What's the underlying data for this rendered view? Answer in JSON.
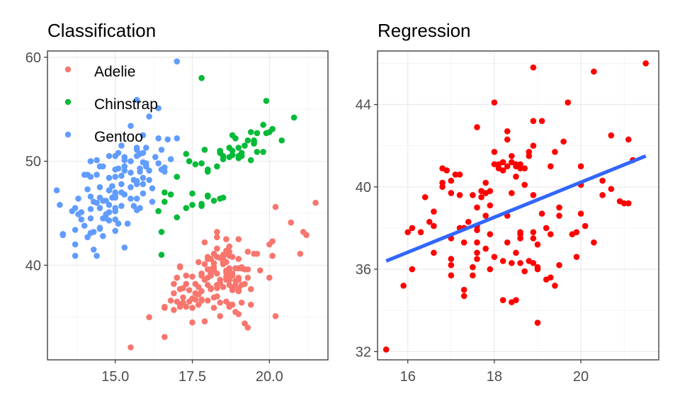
{
  "chart_data": [
    {
      "type": "scatter",
      "title": "Classification",
      "xlabel": "",
      "ylabel": "",
      "xlim": [
        12.8,
        21.9
      ],
      "ylim": [
        30.9,
        60.6
      ],
      "x_ticks": [
        "15.0",
        "17.5",
        "20.0"
      ],
      "y_ticks": [
        "40",
        "50",
        "60"
      ],
      "grid": true,
      "legend_position": "top-left",
      "series": [
        {
          "name": "Adelie",
          "color": "#F8766D",
          "x": [
            15.5,
            21.5,
            20.2,
            21.2,
            21.1,
            20.7,
            18.4,
            16.6,
            18.3,
            19.0,
            18.9,
            20.1,
            18.6,
            18.1,
            18.0,
            17.4,
            19.4,
            17.7,
            18.3,
            17.9,
            16.9,
            18.9,
            18.4,
            19.3,
            18.5,
            17.8,
            21.0,
            19.5,
            18.2,
            19.2,
            19.4,
            18.3,
            19.7,
            18.8,
            20.2,
            17.6,
            19.3,
            18.2,
            19.0,
            19.0,
            19.1,
            19.2,
            19.0,
            18.2,
            20.0,
            17.1,
            18.6,
            17.6,
            17.3,
            17.9,
            19.1,
            18.3,
            17.2,
            18.2,
            16.1,
            18.6,
            18.6,
            17.1,
            18.3,
            18.8,
            18.5,
            19.0,
            18.4,
            17.9,
            17.0,
            18.0,
            18.7,
            18.7,
            17.8,
            17.3,
            17.1,
            18.7,
            20.0,
            17.2,
            17.8,
            18.2,
            18.7,
            16.6,
            17.4,
            20.1,
            18.3,
            17.5,
            18.1,
            18.4,
            18.3,
            18.6,
            18.5,
            17.1,
            19.3,
            17.7,
            19.6,
            17.8,
            18.3,
            17.7,
            17.3,
            18.7,
            18.5,
            17.5,
            17.5,
            17.0,
            18.8,
            18.5,
            18.7,
            17.1,
            19.1,
            18.1,
            18.6,
            19.0,
            19.0,
            18.5,
            18.0,
            19.2,
            17.6,
            18.9,
            18.5,
            18.1,
            16.9,
            17.9,
            16.6,
            18.8,
            19.0,
            18.0,
            18.1,
            18.4,
            17.2,
            19.0,
            18.8,
            18.3,
            19.1,
            18.6,
            17.0,
            16.9,
            17.5,
            18.0,
            18.7,
            18.8,
            17.1,
            18.0,
            17.8,
            18.6,
            18.1,
            19.3,
            18.9,
            17.7,
            18.7,
            18.7,
            18.2,
            18.7,
            18.6,
            16.8
          ],
          "y": [
            32.1,
            46.0,
            45.6,
            42.9,
            43.2,
            44.1,
            36.4,
            35.9,
            38.1,
            37.7,
            38.5,
            42.3,
            41.1,
            40.6,
            40.8,
            36.5,
            36.2,
            36.2,
            38.1,
            34.6,
            35.7,
            35.5,
            35.1,
            34.0,
            37.9,
            36.7,
            41.1,
            41.1,
            39.8,
            38.2,
            37.7,
            40.8,
            39.5,
            39.0,
            35.1,
            37.3,
            39.6,
            36.9,
            42.5,
            35.3,
            38.1,
            39.6,
            38.6,
            35.9,
            42.0,
            39.9,
            40.3,
            36.7,
            39.0,
            40.1,
            36.4,
            37.8,
            37.8,
            41.1,
            35.0,
            36.5,
            42.5,
            37.7,
            37.0,
            39.2,
            41.0,
            37.5,
            38.6,
            42.2,
            38.8,
            36.6,
            39.6,
            38.1,
            36.6,
            36.0,
            39.8,
            41.3,
            38.8,
            36.9,
            39.0,
            40.2,
            38.6,
            33.1,
            37.6,
            40.9,
            43.2,
            34.5,
            39.6,
            40.7,
            39.2,
            39.3,
            40.1,
            36.2,
            41.3,
            37.2,
            41.1,
            39.2,
            41.6,
            37.9,
            38.2,
            36.2,
            40.6,
            38.9,
            36.8,
            38.8,
            36.2,
            40.2,
            36.0,
            37.7,
            39.8,
            39.2,
            41.4,
            38.8,
            39.7,
            40.3,
            38.1,
            34.4,
            38.2,
            39.7,
            40.9,
            37.7,
            37.3,
            38.6,
            36.0,
            40.8,
            37.7,
            40.6,
            39.0,
            38.3,
            36.4,
            40.6,
            37.6,
            42.7,
            39.7,
            38.9,
            36.5,
            38.2,
            35.9,
            38.8,
            39.0,
            37.8,
            36.0,
            39.6,
            37.5,
            39.5,
            37.8,
            38.8,
            38.1,
            40.3,
            39.7,
            41.8,
            39.6,
            40.9,
            38.6,
            36.6
          ]
        },
        {
          "name": "Chinstrap",
          "color": "#00BA38",
          "x": [
            17.8,
            19.9,
            20.8,
            19.8,
            19.5,
            20.4,
            18.9,
            19.6,
            18.7,
            17.4,
            17.0,
            18.5,
            18.0,
            17.5,
            18.7,
            16.5,
            16.5,
            17.0,
            16.6,
            18.0,
            17.9,
            16.8,
            17.3,
            17.6,
            16.6,
            19.1,
            18.3,
            19.0,
            18.8,
            19.4,
            18.4,
            17.8,
            18.0,
            19.0,
            18.8,
            18.5,
            19.1,
            19.5,
            19.2,
            18.0,
            17.8,
            19.6,
            19.9,
            19.5,
            19.8,
            20.0,
            20.1,
            19.3,
            19.0,
            18.5,
            19.4,
            18.4,
            17.3,
            17.5,
            17.8,
            18.4,
            16.4,
            18.8,
            18.2
          ],
          "y": [
            58.0,
            55.8,
            54.2,
            53.5,
            52.0,
            52.0,
            52.2,
            50.9,
            51.3,
            50.0,
            48.5,
            50.5,
            46.7,
            45.8,
            50.4,
            41.0,
            43.2,
            44.6,
            47.0,
            46.6,
            51.1,
            46.8,
            50.7,
            49.7,
            46.1,
            50.5,
            49.5,
            51.3,
            51.0,
            52.8,
            50.8,
            49.8,
            49.2,
            50.3,
            50.6,
            46.5,
            50.8,
            51.9,
            51.5,
            49.0,
            45.9,
            52.7,
            52.7,
            51.7,
            50.9,
            52.8,
            53.1,
            52.0,
            50.5,
            50.2,
            50.1,
            46.4,
            45.5,
            46.9,
            45.7,
            51.0,
            45.2,
            52.5,
            46.2
          ]
        },
        {
          "name": "Gentoo",
          "color": "#619CFF",
          "x": [
            17.0,
            16.4,
            16.1,
            15.7,
            15.5,
            16.7,
            17.0,
            16.5,
            14.2,
            14.8,
            15.9,
            15.3,
            14.6,
            14.0,
            13.1,
            13.8,
            13.2,
            14.3,
            14.5,
            15.0,
            15.9,
            15.5,
            15.2,
            15.9,
            16.0,
            16.1,
            15.6,
            15.0,
            14.9,
            14.7,
            15.7,
            16.3,
            15.8,
            13.6,
            14.7,
            14.8,
            13.7,
            14.4,
            14.5,
            16.5,
            15.5,
            14.2,
            14.0,
            13.3,
            13.7,
            13.7,
            14.5,
            14.6,
            15.0,
            15.7,
            14.5,
            15.0,
            16.0,
            15.3,
            15.5,
            16.8,
            14.6,
            15.3,
            14.2,
            13.8,
            14.8,
            14.2,
            14.1,
            15.2,
            16.0,
            15.7,
            15.1,
            15.8,
            15.4,
            16.2,
            15.0,
            15.3,
            14.5,
            13.7,
            13.9,
            14.3,
            14.4,
            14.8,
            14.1,
            15.1,
            15.7,
            14.8,
            14.9,
            15.8,
            15.0,
            15.5,
            13.9,
            14.7,
            14.1,
            16.0,
            15.1,
            15.2,
            15.7,
            15.6,
            15.3,
            16.4,
            14.3,
            16.1,
            15.9,
            16.6,
            15.0,
            14.6,
            15.0,
            16.2,
            14.4,
            15.0,
            15.2,
            15.2,
            15.7,
            14.2,
            16.6,
            15.8,
            15.0,
            15.7,
            14.8,
            16.4,
            15.9,
            14.8,
            15.3,
            14.2,
            13.3,
            14.4,
            15.9,
            14.5
          ],
          "y": [
            59.6,
            55.1,
            54.3,
            55.9,
            53.4,
            52.1,
            52.2,
            51.1,
            50.0,
            50.5,
            50.8,
            50.4,
            49.5,
            48.7,
            47.2,
            46.4,
            45.8,
            46.1,
            46.5,
            45.5,
            49.9,
            47.5,
            47.0,
            48.4,
            49.8,
            49.1,
            48.2,
            47.0,
            46.5,
            44.9,
            50.5,
            50.4,
            49.3,
            45.2,
            44.5,
            47.2,
            45.5,
            48.7,
            45.5,
            49.2,
            46.4,
            44.5,
            43.8,
            42.9,
            42.0,
            40.9,
            43.5,
            42.8,
            43.3,
            45.3,
            47.5,
            50.5,
            51.3,
            49.1,
            50.0,
            50.2,
            46.2,
            46.8,
            48.5,
            44.9,
            45.1,
            46.6,
            47.3,
            47.8,
            49.5,
            48.1,
            49.3,
            50.7,
            44.0,
            46.1,
            44.4,
            41.7,
            43.6,
            43.4,
            45.1,
            41.5,
            40.9,
            45.8,
            42.7,
            44.0,
            46.4,
            47.2,
            47.6,
            49.0,
            48.5,
            48.9,
            44.4,
            46.2,
            48.7,
            49.6,
            50.8,
            45.7,
            47.8,
            45.7,
            50.1,
            49.8,
            43.2,
            48.2,
            46.9,
            49.0,
            46.5,
            44.5,
            46.8,
            47.4,
            50.1,
            49.2,
            48.6,
            51.5,
            51.1,
            45.4,
            49.4,
            45.5,
            45.2,
            51.3,
            44.3,
            52.2,
            52.5,
            48.4,
            49.5,
            43.1,
            43.0,
            46.0,
            47.8,
            49.5
          ]
        }
      ]
    },
    {
      "type": "scatter",
      "title": "Regression",
      "xlabel": "",
      "ylabel": "",
      "xlim": [
        15.3,
        21.8
      ],
      "ylim": [
        31.6,
        46.6
      ],
      "x_ticks": [
        "16",
        "18",
        "20"
      ],
      "y_ticks": [
        "32",
        "36",
        "40",
        "44"
      ],
      "grid": true,
      "series": [
        {
          "name": "",
          "color": "#FF0000",
          "x": [
            15.5,
            21.5,
            20.3,
            18.9,
            21.1,
            21.2,
            19.7,
            20.7,
            21.0,
            20.3,
            20.5,
            18.3,
            18.0,
            17.6,
            18.9,
            19.1,
            18.0,
            18.4,
            19.6,
            19.4,
            18.4,
            18.5,
            18.2,
            18.6,
            18.5,
            18.4,
            18.1,
            18.7,
            16.8,
            17.7,
            19.3,
            20.0,
            20.0,
            18.7,
            19.5,
            19.1,
            18.9,
            19.5,
            18.9,
            17.2,
            17.0,
            16.9,
            17.5,
            17.9,
            17.6,
            17.8,
            17.4,
            16.5,
            16.3,
            16.0,
            15.9,
            16.6,
            17.0,
            17.8,
            17.6,
            17.3,
            17.6,
            18.9,
            19.2,
            20.1,
            19.9,
            20.0,
            19.8,
            19.9,
            20.9,
            21.1,
            20.7,
            20.5,
            18.0,
            18.2,
            18.8,
            18.6,
            18.8,
            18.9,
            18.3,
            18.3,
            18.5,
            18.1,
            17.8,
            17.9,
            17.7,
            17.1,
            17.0,
            17.2,
            16.8,
            16.6,
            16.8,
            16.4,
            16.6,
            16.1,
            17.2,
            17.3,
            17.9,
            17.6,
            17.0,
            17.3,
            17.8,
            17.6,
            18.3,
            18.5,
            18.0,
            18.2,
            18.4,
            18.6,
            19.0,
            19.2,
            19.3,
            19.5,
            18.5,
            18.7,
            18.9,
            17.6,
            17.9,
            18.2,
            18.6,
            18.4,
            19.0,
            17.3,
            17.5,
            17.0,
            16.1,
            19.0,
            18.8,
            17.3,
            17.5,
            17.0,
            18.3,
            18.6,
            19.3,
            19.0,
            18.6,
            19.4
          ],
          "y": [
            32.1,
            46.0,
            45.6,
            45.8,
            42.3,
            41.3,
            44.1,
            42.5,
            39.2,
            37.3,
            39.6,
            42.7,
            44.1,
            42.9,
            43.2,
            43.2,
            41.7,
            41.2,
            42.2,
            41.7,
            41.5,
            41.0,
            40.8,
            40.9,
            40.5,
            39.7,
            41.1,
            40.9,
            40.9,
            39.8,
            41.0,
            40.1,
            41.0,
            40.1,
            38.6,
            38.7,
            37.8,
            39.0,
            37.5,
            40.6,
            40.3,
            40.8,
            39.6,
            39.1,
            38.1,
            38.6,
            38.3,
            38.3,
            37.8,
            37.8,
            35.2,
            36.8,
            36.5,
            39.7,
            37.9,
            38.0,
            39.0,
            39.6,
            38.0,
            38.1,
            37.8,
            38.7,
            37.7,
            36.6,
            39.3,
            39.2,
            39.9,
            40.3,
            41.1,
            41.2,
            41.5,
            41.1,
            41.7,
            42.0,
            42.3,
            41.0,
            41.1,
            40.9,
            40.2,
            39.8,
            39.5,
            40.6,
            39.7,
            39.6,
            40.2,
            38.8,
            40.0,
            39.5,
            38.1,
            38.0,
            38.0,
            38.0,
            37.7,
            37.3,
            37.5,
            37.3,
            37.0,
            36.5,
            37.3,
            36.8,
            36.6,
            36.4,
            36.3,
            36.3,
            36.1,
            35.5,
            35.6,
            36.2,
            34.5,
            35.9,
            36.3,
            36.8,
            36.0,
            34.5,
            37.8,
            34.4,
            33.4,
            34.7,
            36.1,
            36.2,
            36.0,
            36.0,
            36.4,
            35.0,
            35.7,
            35.7,
            38.6,
            37.7,
            37.7,
            37.2,
            37.5,
            35.2
          ],
          "fit_x": [
            15.5,
            21.5
          ],
          "fit_y": [
            36.4,
            41.5
          ],
          "fit_color": "#3366FF"
        }
      ]
    }
  ]
}
